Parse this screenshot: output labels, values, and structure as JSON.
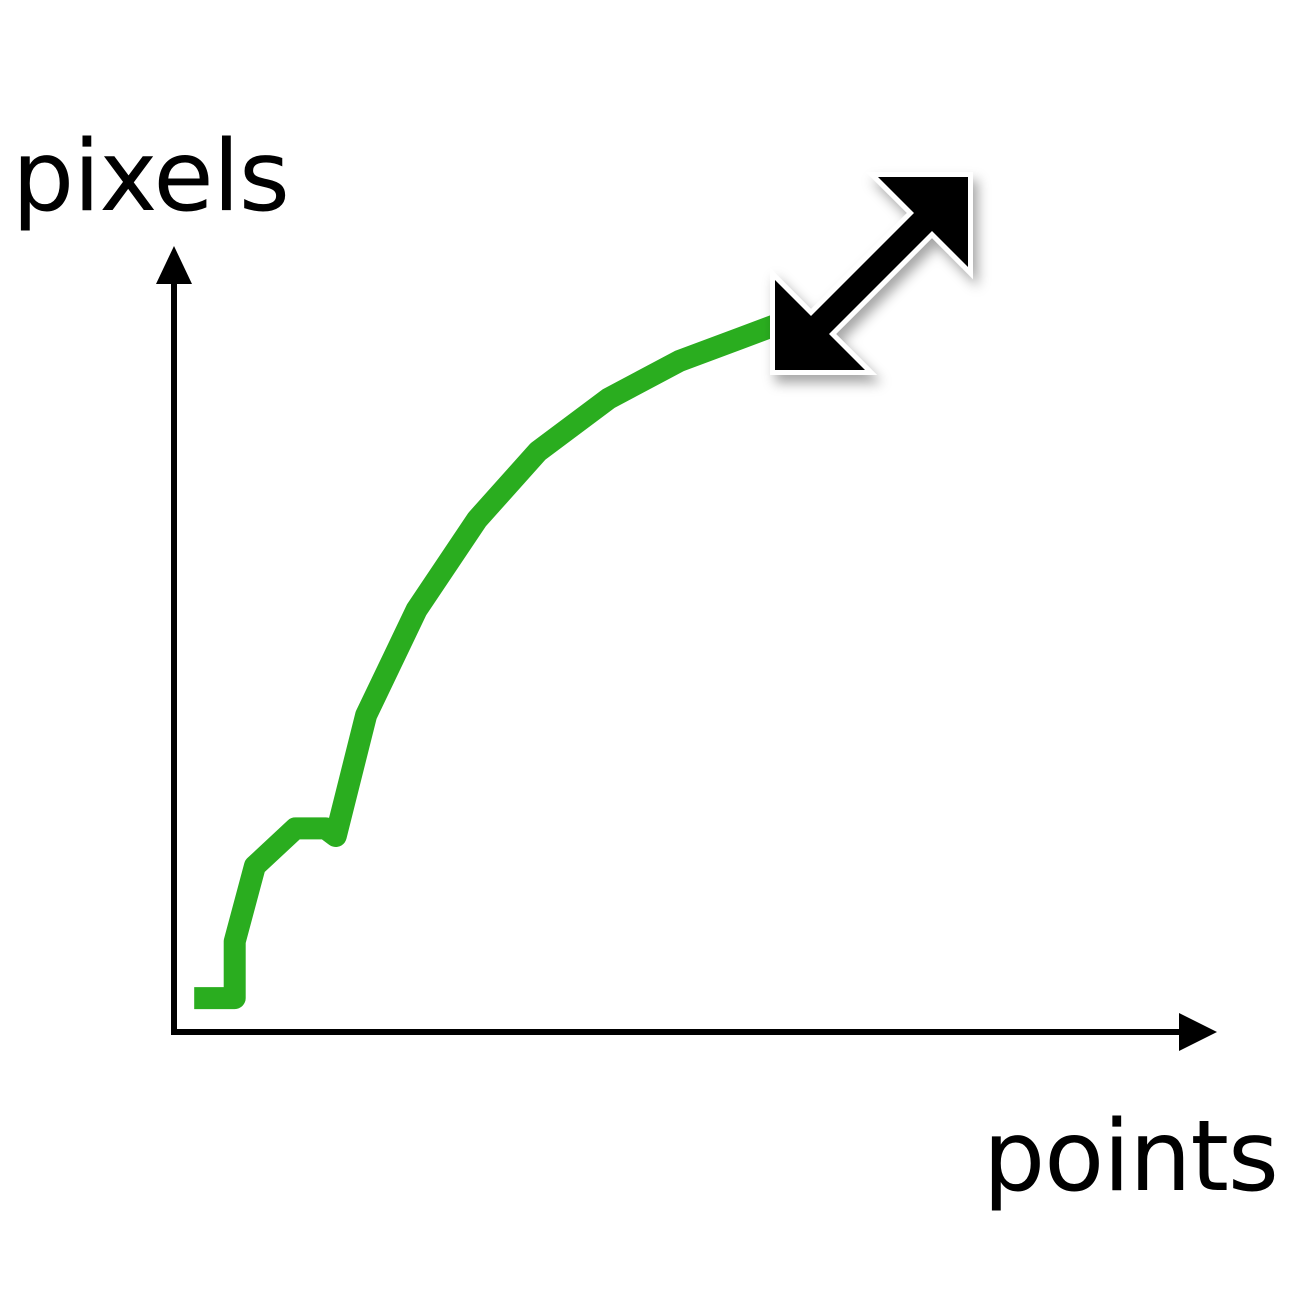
{
  "chart_data": {
    "type": "line",
    "title": "",
    "xlabel": "points",
    "ylabel": "pixels",
    "xlim": [
      0,
      10
    ],
    "ylim": [
      0,
      10
    ],
    "grid": false,
    "legend": "none",
    "series": [
      {
        "color": "#2aad1f",
        "x": [
          0.2,
          0.6,
          0.6,
          0.62,
          0.8,
          1.2,
          1.5,
          1.6,
          1.9,
          2.4,
          3.0,
          3.6,
          4.3,
          5.0,
          5.6,
          6.0
        ],
        "y": [
          0.45,
          0.45,
          1.2,
          1.3,
          2.2,
          2.7,
          2.7,
          2.6,
          4.2,
          5.6,
          6.8,
          7.7,
          8.4,
          8.9,
          9.2,
          9.4
        ]
      }
    ],
    "annotation": {
      "icon": "diagonal-resize-arrow-icon",
      "color": "#000000",
      "outline": "#ffffff"
    }
  },
  "axis_color": "#000000"
}
